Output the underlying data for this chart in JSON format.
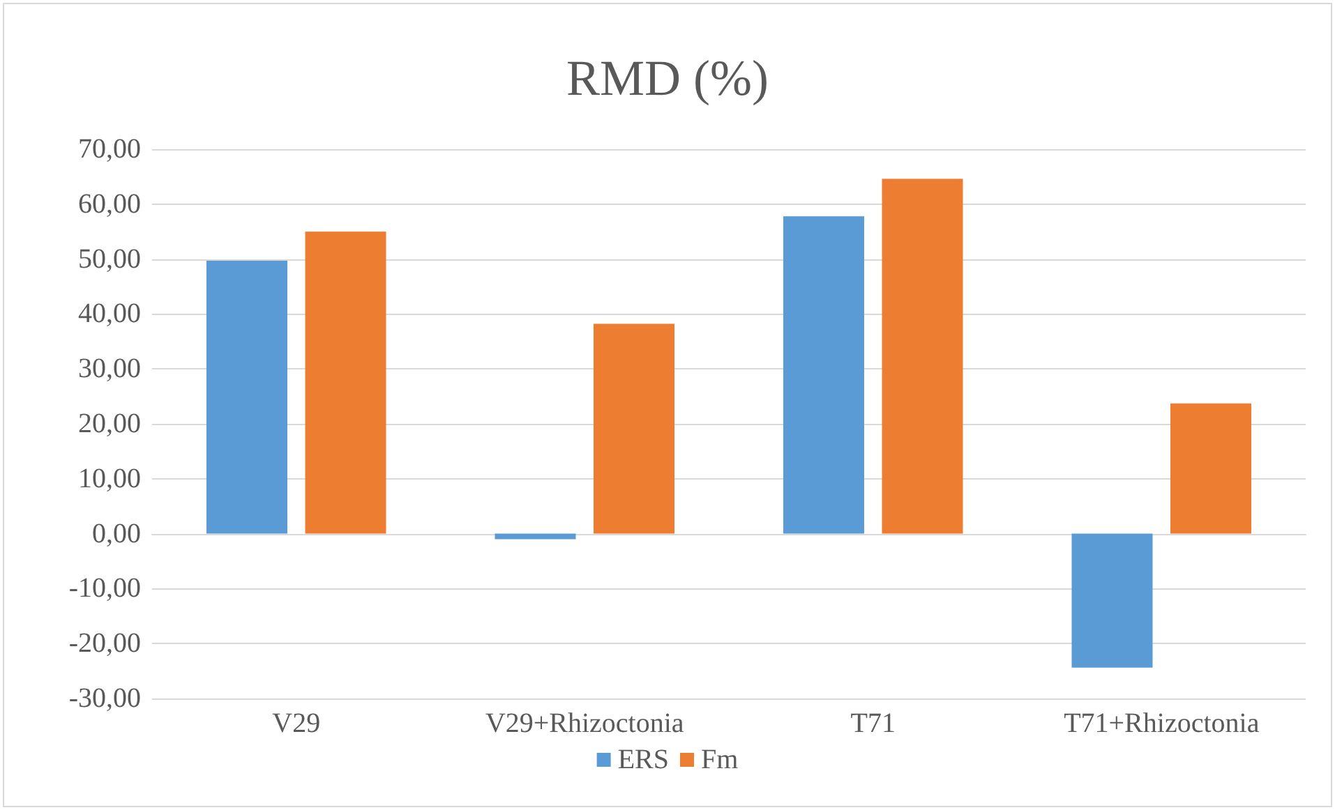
{
  "chart_data": {
    "type": "bar",
    "title": "RMD (%)",
    "categories": [
      "V29",
      "V29+Rhizoctonia",
      "T71",
      "T71+Rhizoctonia"
    ],
    "series": [
      {
        "name": "ERS",
        "color": "#5b9bd5",
        "values": [
          49.7,
          -1.0,
          57.8,
          -24.4
        ]
      },
      {
        "name": "Fm",
        "color": "#ed7d31",
        "values": [
          55.0,
          38.2,
          64.6,
          23.7
        ]
      }
    ],
    "ylim": [
      -30,
      70
    ],
    "yticks": [
      {
        "value": -30,
        "label": "-30,00"
      },
      {
        "value": -20,
        "label": "-20,00"
      },
      {
        "value": -10,
        "label": "-10,00"
      },
      {
        "value": 0,
        "label": "0,00"
      },
      {
        "value": 10,
        "label": "10,00"
      },
      {
        "value": 20,
        "label": "20,00"
      },
      {
        "value": 30,
        "label": "30,00"
      },
      {
        "value": 40,
        "label": "40,00"
      },
      {
        "value": 50,
        "label": "50,00"
      },
      {
        "value": 60,
        "label": "60,00"
      },
      {
        "value": 70,
        "label": "70,00"
      }
    ],
    "grid": "y",
    "legend": "bottom"
  }
}
